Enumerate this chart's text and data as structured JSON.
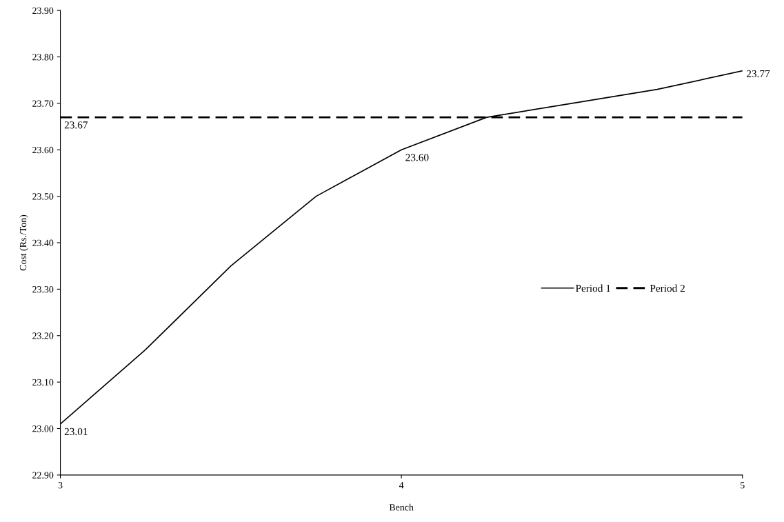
{
  "chart_data": {
    "type": "line",
    "xlabel": "Bench",
    "ylabel": "Cost (Rs./Ton)",
    "x": [
      3,
      3.25,
      3.5,
      3.75,
      4,
      4.25,
      4.5,
      4.75,
      5
    ],
    "series": [
      {
        "name": "Period 1",
        "color": "#000000",
        "values": [
          23.01,
          23.17,
          23.35,
          23.5,
          23.6,
          23.67,
          23.7,
          23.73,
          23.77
        ],
        "line_style": "solid",
        "value_labels": [
          "23.01",
          null,
          null,
          null,
          "23.60",
          null,
          null,
          null,
          "23.77"
        ]
      },
      {
        "name": "Period 2",
        "color": "#000000",
        "x": [
          3,
          5
        ],
        "values": [
          23.67,
          23.67
        ],
        "line_style": "dashed",
        "value_labels": [
          "23.67",
          null
        ]
      }
    ],
    "xlim": [
      3,
      5
    ],
    "xticks": [
      3,
      4,
      5
    ],
    "ylim": [
      22.9,
      23.9
    ],
    "yticks": [
      {
        "value": 22.9,
        "label": "22.90"
      },
      {
        "value": 23.0,
        "label": "23.00"
      },
      {
        "value": 23.1,
        "label": "23.10"
      },
      {
        "value": 23.2,
        "label": "23.20"
      },
      {
        "value": 23.3,
        "label": "23.30"
      },
      {
        "value": 23.4,
        "label": "23.40"
      },
      {
        "value": 23.5,
        "label": "23.50"
      },
      {
        "value": 23.6,
        "label": "23.60"
      },
      {
        "value": 23.7,
        "label": "23.70"
      },
      {
        "value": 23.8,
        "label": "23.80"
      },
      {
        "value": 23.9,
        "label": "23.90"
      }
    ],
    "grid": false,
    "legend": "right",
    "marker": "none"
  }
}
